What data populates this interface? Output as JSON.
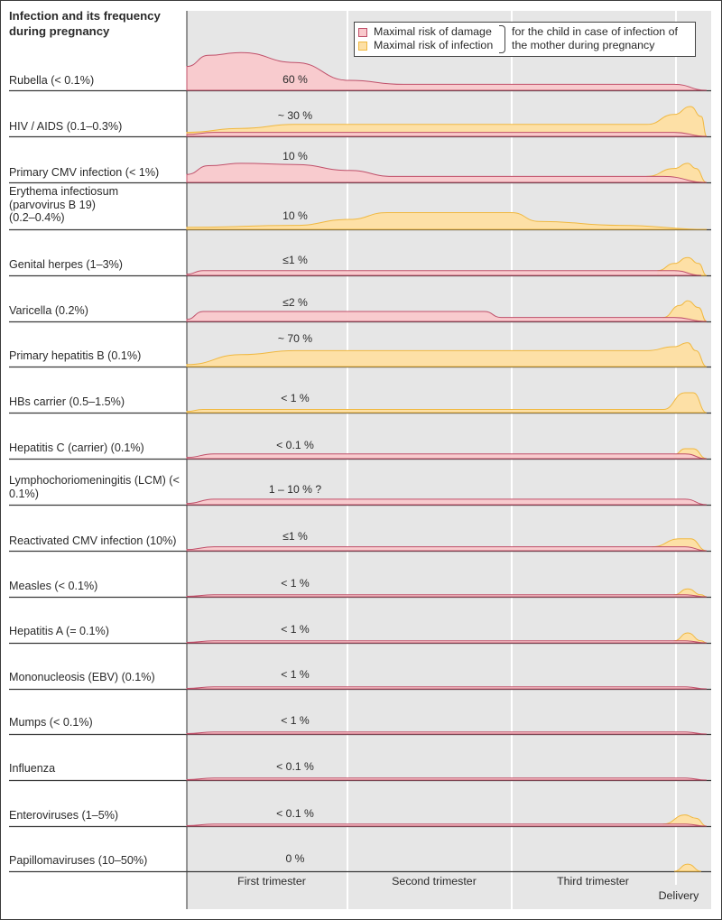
{
  "title": "Infection and its frequency during pregnancy",
  "legend": {
    "damage_label": "Maximal risk of damage",
    "infection_label": "Maximal risk of infection",
    "note_line1": "for the child in case of infection of",
    "note_line2": "the mother during pregnancy"
  },
  "colors": {
    "damage_fill": "#f9c9cc",
    "damage_stroke": "#c0506a",
    "infection_fill": "#fde0a6",
    "infection_stroke": "#f0b840",
    "plot_bg": "#e6e6e6",
    "divider": "#ffffff",
    "baseline": "#3a3a3a"
  },
  "chart_data": {
    "type": "area",
    "title": "Infection and its frequency during pregnancy",
    "x_categories": [
      "First trimester",
      "Second trimester",
      "Third trimester",
      "Delivery"
    ],
    "x_domain": [
      0,
      1
    ],
    "x_note": "x: 0 = conception, 0.333 = end of 1st trimester, 0.667 = end of 2nd trimester, ~0.93 = delivery; y: relative risk height (0-1) per row",
    "legend_position": "top-right",
    "series_names": [
      "Maximal risk of damage",
      "Maximal risk of infection"
    ],
    "rows": [
      {
        "label": "Rubella (< 0.1%)",
        "value_label": "60 %",
        "damage": [
          [
            0,
            0.6
          ],
          [
            0.04,
            0.88
          ],
          [
            0.1,
            0.95
          ],
          [
            0.2,
            0.7
          ],
          [
            0.3,
            0.25
          ],
          [
            0.4,
            0.15
          ],
          [
            0.6,
            0.15
          ],
          [
            0.9,
            0.15
          ],
          [
            0.96,
            0
          ]
        ],
        "infection": []
      },
      {
        "label": "HIV / AIDS (0.1–0.3%)",
        "value_label": "~ 30 %",
        "damage": [
          [
            0,
            0.05
          ],
          [
            0.05,
            0.1
          ],
          [
            0.9,
            0.1
          ],
          [
            0.96,
            0
          ]
        ],
        "infection": [
          [
            0,
            0.1
          ],
          [
            0.1,
            0.2
          ],
          [
            0.2,
            0.3
          ],
          [
            0.35,
            0.3
          ],
          [
            0.85,
            0.3
          ],
          [
            0.9,
            0.55
          ],
          [
            0.93,
            0.75
          ],
          [
            0.95,
            0.5
          ],
          [
            0.96,
            0
          ]
        ]
      },
      {
        "label": "Primary CMV infection (< 1%)",
        "value_label": "10 %",
        "damage": [
          [
            0,
            0.2
          ],
          [
            0.04,
            0.42
          ],
          [
            0.1,
            0.48
          ],
          [
            0.2,
            0.45
          ],
          [
            0.3,
            0.3
          ],
          [
            0.38,
            0.15
          ],
          [
            0.88,
            0.15
          ],
          [
            0.96,
            0
          ]
        ],
        "infection": [
          [
            0.85,
            0.15
          ],
          [
            0.9,
            0.35
          ],
          [
            0.925,
            0.48
          ],
          [
            0.94,
            0.35
          ],
          [
            0.96,
            0
          ]
        ]
      },
      {
        "label": "Erythema infectiosum (parvovirus B 19) (0.2–0.4%)",
        "value_label": "10 %",
        "damage": [],
        "infection": [
          [
            0,
            0.05
          ],
          [
            0.2,
            0.1
          ],
          [
            0.3,
            0.25
          ],
          [
            0.37,
            0.42
          ],
          [
            0.6,
            0.42
          ],
          [
            0.65,
            0.2
          ],
          [
            0.8,
            0.1
          ],
          [
            0.96,
            0
          ]
        ]
      },
      {
        "label": "Genital herpes (1–3%)",
        "value_label": "≤1 %",
        "damage": [
          [
            0,
            0.03
          ],
          [
            0.03,
            0.12
          ],
          [
            0.9,
            0.12
          ],
          [
            0.95,
            0
          ]
        ],
        "infection": [
          [
            0.87,
            0.12
          ],
          [
            0.9,
            0.3
          ],
          [
            0.925,
            0.45
          ],
          [
            0.945,
            0.3
          ],
          [
            0.96,
            0
          ]
        ]
      },
      {
        "label": "Varicella (0.2%)",
        "value_label": "≤2 %",
        "damage": [
          [
            0,
            0.05
          ],
          [
            0.03,
            0.25
          ],
          [
            0.55,
            0.25
          ],
          [
            0.58,
            0.1
          ],
          [
            0.9,
            0.1
          ],
          [
            0.96,
            0
          ]
        ],
        "infection": [
          [
            0.88,
            0.1
          ],
          [
            0.91,
            0.4
          ],
          [
            0.925,
            0.52
          ],
          [
            0.945,
            0.35
          ],
          [
            0.96,
            0
          ]
        ]
      },
      {
        "label": "Primary hepatitis B (0.1%)",
        "value_label": "~ 70 %",
        "damage": [],
        "infection": [
          [
            0,
            0.05
          ],
          [
            0.1,
            0.3
          ],
          [
            0.2,
            0.4
          ],
          [
            0.85,
            0.4
          ],
          [
            0.9,
            0.5
          ],
          [
            0.925,
            0.6
          ],
          [
            0.94,
            0.4
          ],
          [
            0.96,
            0
          ]
        ]
      },
      {
        "label": "HBs carrier (0.5–1.5%)",
        "value_label": "< 1 %",
        "damage": [],
        "infection": [
          [
            0,
            0.03
          ],
          [
            0.03,
            0.08
          ],
          [
            0.88,
            0.08
          ],
          [
            0.92,
            0.5
          ],
          [
            0.935,
            0.5
          ],
          [
            0.96,
            0
          ]
        ]
      },
      {
        "label": "Hepatitis C (carrier) (0.1%)",
        "value_label": "< 0.1 %",
        "damage": [
          [
            0,
            0.03
          ],
          [
            0.05,
            0.12
          ],
          [
            0.92,
            0.12
          ],
          [
            0.96,
            0
          ]
        ],
        "infection": [
          [
            0.9,
            0.1
          ],
          [
            0.92,
            0.25
          ],
          [
            0.935,
            0.25
          ],
          [
            0.96,
            0
          ]
        ]
      },
      {
        "label": "Lymphochoriomeningitis (LCM) (< 0.1%)",
        "value_label": "1 – 10 % ?",
        "damage": [
          [
            0,
            0.03
          ],
          [
            0.05,
            0.14
          ],
          [
            0.92,
            0.14
          ],
          [
            0.96,
            0
          ]
        ],
        "infection": []
      },
      {
        "label": "Reactivated CMV infection (10%)",
        "value_label": "≤1 %",
        "damage": [
          [
            0,
            0.03
          ],
          [
            0.05,
            0.1
          ],
          [
            0.92,
            0.1
          ],
          [
            0.96,
            0
          ]
        ],
        "infection": [
          [
            0.86,
            0.1
          ],
          [
            0.91,
            0.3
          ],
          [
            0.93,
            0.3
          ],
          [
            0.96,
            0
          ]
        ]
      },
      {
        "label": "Measles (< 0.1%)",
        "value_label": "< 1 %",
        "damage": [
          [
            0,
            0.01
          ],
          [
            0.05,
            0.05
          ],
          [
            0.92,
            0.05
          ],
          [
            0.96,
            0
          ]
        ],
        "infection": [
          [
            0.9,
            0.05
          ],
          [
            0.925,
            0.2
          ],
          [
            0.95,
            0.05
          ],
          [
            0.96,
            0
          ]
        ]
      },
      {
        "label": "Hepatitis A (= 0.1%)",
        "value_label": "< 1 %",
        "damage": [
          [
            0,
            0.01
          ],
          [
            0.05,
            0.05
          ],
          [
            0.92,
            0.05
          ],
          [
            0.96,
            0
          ]
        ],
        "infection": [
          [
            0.9,
            0.05
          ],
          [
            0.925,
            0.25
          ],
          [
            0.95,
            0.05
          ],
          [
            0.96,
            0
          ]
        ]
      },
      {
        "label": "Mononucleosis (EBV) (0.1%)",
        "value_label": "< 1 %",
        "damage": [
          [
            0,
            0.01
          ],
          [
            0.05,
            0.05
          ],
          [
            0.92,
            0.05
          ],
          [
            0.96,
            0
          ]
        ],
        "infection": []
      },
      {
        "label": "Mumps (< 0.1%)",
        "value_label": "< 1 %",
        "damage": [
          [
            0,
            0.01
          ],
          [
            0.05,
            0.05
          ],
          [
            0.92,
            0.05
          ],
          [
            0.96,
            0
          ]
        ],
        "infection": []
      },
      {
        "label": "Influenza",
        "value_label": "< 0.1 %",
        "damage": [
          [
            0,
            0.01
          ],
          [
            0.05,
            0.05
          ],
          [
            0.92,
            0.05
          ],
          [
            0.96,
            0
          ]
        ],
        "infection": []
      },
      {
        "label": "Enteroviruses (1–5%)",
        "value_label": "< 0.1 %",
        "damage": [
          [
            0,
            0.01
          ],
          [
            0.05,
            0.05
          ],
          [
            0.92,
            0.05
          ],
          [
            0.96,
            0
          ]
        ],
        "infection": [
          [
            0.88,
            0.05
          ],
          [
            0.92,
            0.28
          ],
          [
            0.94,
            0.2
          ],
          [
            0.96,
            0
          ]
        ]
      },
      {
        "label": "Papillomaviruses (10–50%)",
        "value_label": "0 %",
        "damage": [],
        "infection": [
          [
            0.9,
            0
          ],
          [
            0.925,
            0.18
          ],
          [
            0.95,
            0
          ]
        ]
      }
    ]
  }
}
